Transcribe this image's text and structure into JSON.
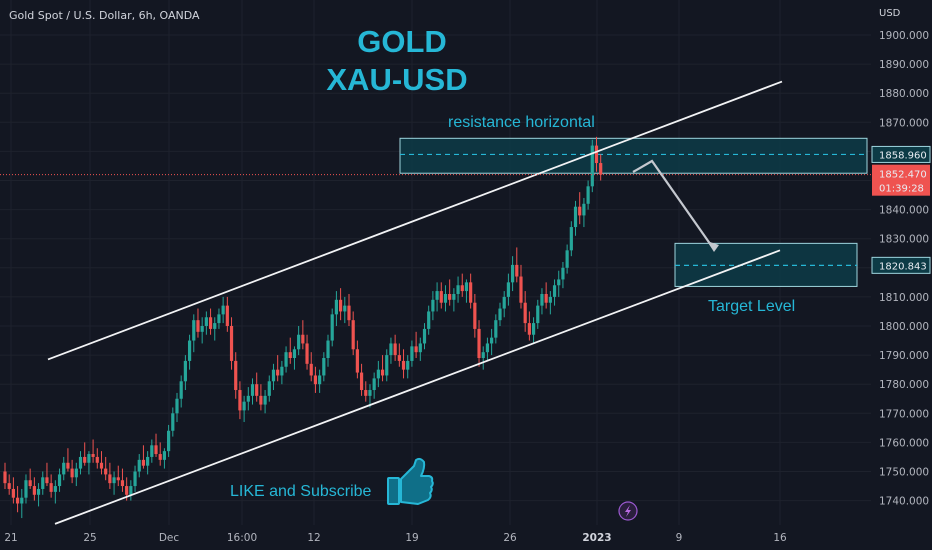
{
  "symbol": "Gold Spot / U.S. Dollar, 6h, OANDA",
  "currency": "USD",
  "colors": {
    "background": "#131722",
    "up": "#26a69a",
    "down": "#ef5350",
    "accent": "#26b7d6",
    "zone_fill": "#0d3b46",
    "zone_stroke": "#9fd6df"
  },
  "chart_data": {
    "type": "candlestick",
    "title": "GOLD",
    "subtitle": "XAU-USD",
    "ylim": [
      1732,
      1911
    ],
    "y_ticks": [
      1740,
      1750,
      1760,
      1770,
      1780,
      1790,
      1800,
      1810,
      1820,
      1830,
      1840,
      1850,
      1860,
      1870,
      1880,
      1890,
      1900
    ],
    "y_tick_labels": [
      "1740.000",
      "1750.000",
      "1760.000",
      "1770.000",
      "1780.000",
      "1790.000",
      "1800.000",
      "1810.000",
      "1820.000",
      "1830.000",
      "1840.000",
      "1850.000",
      "1860.000",
      "1870.000",
      "1880.000",
      "1890.000",
      "1900.000"
    ],
    "x_ticks": [
      {
        "label": "21",
        "bold": false
      },
      {
        "label": "25",
        "bold": false
      },
      {
        "label": "Dec",
        "bold": false
      },
      {
        "label": "16:00",
        "bold": false
      },
      {
        "label": "12",
        "bold": false
      },
      {
        "label": "19",
        "bold": false
      },
      {
        "label": "26",
        "bold": false
      },
      {
        "label": "2023",
        "bold": true
      },
      {
        "label": "9",
        "bold": false
      },
      {
        "label": "16",
        "bold": false
      }
    ],
    "last_price_label": "1852.470",
    "countdown": "01:39:28",
    "zones": [
      {
        "name": "resistance",
        "label": "resistance horizontal",
        "price_label": "1858.960",
        "low": 1852.5,
        "high": 1864.5,
        "level": 1858.96
      },
      {
        "name": "target",
        "label": "Target Level",
        "price_label": "1820.843",
        "low": 1813.6,
        "high": 1828.4,
        "level": 1820.843
      }
    ],
    "channel": [
      {
        "name": "upper",
        "from": [
          0,
          1788.5
        ],
        "to": [
          250,
          1884
        ]
      },
      {
        "name": "lower",
        "from": [
          17,
          1732
        ],
        "to": [
          250,
          1826
        ]
      }
    ],
    "annotation": "LIKE and Subscribe",
    "candles": [
      [
        1750,
        1753,
        1744,
        1746
      ],
      [
        1746,
        1749,
        1742,
        1744
      ],
      [
        1744,
        1748,
        1739,
        1741
      ],
      [
        1741,
        1745,
        1736,
        1739
      ],
      [
        1739,
        1744,
        1734,
        1741
      ],
      [
        1741,
        1749,
        1739,
        1747
      ],
      [
        1747,
        1751,
        1744,
        1745
      ],
      [
        1745,
        1748,
        1740,
        1742
      ],
      [
        1742,
        1746,
        1738,
        1744
      ],
      [
        1744,
        1750,
        1742,
        1748
      ],
      [
        1748,
        1753,
        1745,
        1746
      ],
      [
        1746,
        1749,
        1741,
        1743
      ],
      [
        1743,
        1747,
        1739,
        1745
      ],
      [
        1745,
        1751,
        1743,
        1749
      ],
      [
        1749,
        1755,
        1747,
        1753
      ],
      [
        1753,
        1758,
        1750,
        1751
      ],
      [
        1751,
        1754,
        1746,
        1748
      ],
      [
        1748,
        1753,
        1745,
        1751
      ],
      [
        1751,
        1757,
        1749,
        1755
      ],
      [
        1755,
        1760,
        1752,
        1753
      ],
      [
        1753,
        1757,
        1749,
        1756
      ],
      [
        1756,
        1761,
        1753,
        1755
      ],
      [
        1755,
        1758,
        1751,
        1753
      ],
      [
        1753,
        1757,
        1749,
        1751
      ],
      [
        1751,
        1755,
        1747,
        1749
      ],
      [
        1749,
        1753,
        1744,
        1746
      ],
      [
        1746,
        1750,
        1742,
        1748
      ],
      [
        1748,
        1752,
        1745,
        1747
      ],
      [
        1747,
        1751,
        1743,
        1745
      ],
      [
        1745,
        1748,
        1740,
        1742
      ],
      [
        1742,
        1747,
        1740,
        1745
      ],
      [
        1745,
        1752,
        1743,
        1750
      ],
      [
        1750,
        1756,
        1748,
        1754
      ],
      [
        1754,
        1759,
        1751,
        1752
      ],
      [
        1752,
        1757,
        1749,
        1755
      ],
      [
        1755,
        1761,
        1753,
        1759
      ],
      [
        1759,
        1763,
        1755,
        1756
      ],
      [
        1756,
        1760,
        1752,
        1754
      ],
      [
        1754,
        1758,
        1751,
        1757
      ],
      [
        1757,
        1766,
        1755,
        1764
      ],
      [
        1764,
        1772,
        1762,
        1770
      ],
      [
        1770,
        1777,
        1767,
        1775
      ],
      [
        1775,
        1783,
        1772,
        1781
      ],
      [
        1781,
        1790,
        1778,
        1788
      ],
      [
        1788,
        1797,
        1785,
        1795
      ],
      [
        1795,
        1804,
        1791,
        1802
      ],
      [
        1802,
        1806,
        1796,
        1798
      ],
      [
        1798,
        1803,
        1794,
        1800
      ],
      [
        1800,
        1805,
        1797,
        1803
      ],
      [
        1803,
        1806,
        1797,
        1799
      ],
      [
        1799,
        1803,
        1795,
        1801
      ],
      [
        1801,
        1806,
        1799,
        1804
      ],
      [
        1804,
        1810,
        1801,
        1807
      ],
      [
        1807,
        1810,
        1798,
        1800
      ],
      [
        1800,
        1803,
        1785,
        1788
      ],
      [
        1788,
        1791,
        1775,
        1778
      ],
      [
        1778,
        1781,
        1768,
        1771
      ],
      [
        1771,
        1776,
        1767,
        1774
      ],
      [
        1774,
        1779,
        1771,
        1776
      ],
      [
        1776,
        1782,
        1773,
        1780
      ],
      [
        1780,
        1784,
        1774,
        1776
      ],
      [
        1776,
        1780,
        1771,
        1773
      ],
      [
        1773,
        1778,
        1770,
        1776
      ],
      [
        1776,
        1783,
        1774,
        1781
      ],
      [
        1781,
        1787,
        1778,
        1785
      ],
      [
        1785,
        1790,
        1781,
        1783
      ],
      [
        1783,
        1788,
        1780,
        1786
      ],
      [
        1786,
        1793,
        1784,
        1791
      ],
      [
        1791,
        1796,
        1787,
        1789
      ],
      [
        1789,
        1793,
        1785,
        1792
      ],
      [
        1792,
        1800,
        1790,
        1797
      ],
      [
        1797,
        1802,
        1792,
        1794
      ],
      [
        1794,
        1797,
        1785,
        1787
      ],
      [
        1787,
        1791,
        1781,
        1783
      ],
      [
        1783,
        1786,
        1777,
        1780
      ],
      [
        1780,
        1785,
        1777,
        1783
      ],
      [
        1783,
        1791,
        1781,
        1789
      ],
      [
        1789,
        1797,
        1786,
        1795
      ],
      [
        1795,
        1806,
        1793,
        1804
      ],
      [
        1804,
        1812,
        1800,
        1809
      ],
      [
        1809,
        1813,
        1802,
        1805
      ],
      [
        1805,
        1810,
        1801,
        1807
      ],
      [
        1807,
        1811,
        1800,
        1802
      ],
      [
        1802,
        1805,
        1790,
        1792
      ],
      [
        1792,
        1795,
        1782,
        1784
      ],
      [
        1784,
        1787,
        1776,
        1778
      ],
      [
        1778,
        1781,
        1774,
        1776
      ],
      [
        1776,
        1780,
        1772,
        1778
      ],
      [
        1778,
        1784,
        1775,
        1782
      ],
      [
        1782,
        1788,
        1779,
        1785
      ],
      [
        1785,
        1790,
        1781,
        1783
      ],
      [
        1783,
        1792,
        1781,
        1790
      ],
      [
        1790,
        1796,
        1787,
        1794
      ],
      [
        1794,
        1797,
        1788,
        1790
      ],
      [
        1790,
        1794,
        1786,
        1788
      ],
      [
        1788,
        1792,
        1782,
        1785
      ],
      [
        1785,
        1790,
        1782,
        1788
      ],
      [
        1788,
        1795,
        1786,
        1793
      ],
      [
        1793,
        1798,
        1789,
        1791
      ],
      [
        1791,
        1796,
        1788,
        1794
      ],
      [
        1794,
        1801,
        1792,
        1799
      ],
      [
        1799,
        1807,
        1797,
        1805
      ],
      [
        1805,
        1812,
        1802,
        1809
      ],
      [
        1809,
        1815,
        1805,
        1812
      ],
      [
        1812,
        1815,
        1806,
        1808
      ],
      [
        1808,
        1814,
        1805,
        1811
      ],
      [
        1811,
        1816,
        1807,
        1809
      ],
      [
        1809,
        1813,
        1805,
        1811
      ],
      [
        1811,
        1817,
        1808,
        1814
      ],
      [
        1814,
        1818,
        1810,
        1812
      ],
      [
        1812,
        1816,
        1808,
        1815
      ],
      [
        1815,
        1818,
        1806,
        1808
      ],
      [
        1808,
        1811,
        1796,
        1799
      ],
      [
        1799,
        1802,
        1786,
        1789
      ],
      [
        1789,
        1793,
        1785,
        1791
      ],
      [
        1791,
        1796,
        1788,
        1794
      ],
      [
        1794,
        1799,
        1790,
        1796
      ],
      [
        1796,
        1804,
        1794,
        1802
      ],
      [
        1802,
        1808,
        1800,
        1806
      ],
      [
        1806,
        1812,
        1803,
        1810
      ],
      [
        1810,
        1818,
        1807,
        1815
      ],
      [
        1815,
        1824,
        1812,
        1821
      ],
      [
        1821,
        1827,
        1815,
        1817
      ],
      [
        1817,
        1821,
        1806,
        1808
      ],
      [
        1808,
        1812,
        1798,
        1801
      ],
      [
        1801,
        1805,
        1795,
        1797
      ],
      [
        1797,
        1803,
        1794,
        1801
      ],
      [
        1801,
        1809,
        1799,
        1807
      ],
      [
        1807,
        1813,
        1804,
        1811
      ],
      [
        1811,
        1815,
        1806,
        1808
      ],
      [
        1808,
        1812,
        1804,
        1810
      ],
      [
        1810,
        1816,
        1807,
        1814
      ],
      [
        1814,
        1819,
        1810,
        1816
      ],
      [
        1816,
        1822,
        1813,
        1820
      ],
      [
        1820,
        1828,
        1818,
        1826
      ],
      [
        1826,
        1836,
        1824,
        1834
      ],
      [
        1834,
        1843,
        1831,
        1841
      ],
      [
        1841,
        1846,
        1835,
        1838
      ],
      [
        1838,
        1844,
        1834,
        1842
      ],
      [
        1842,
        1850,
        1840,
        1848
      ],
      [
        1848,
        1864,
        1846,
        1862
      ],
      [
        1862,
        1865,
        1853,
        1856
      ],
      [
        1856,
        1859,
        1850,
        1852
      ]
    ]
  }
}
